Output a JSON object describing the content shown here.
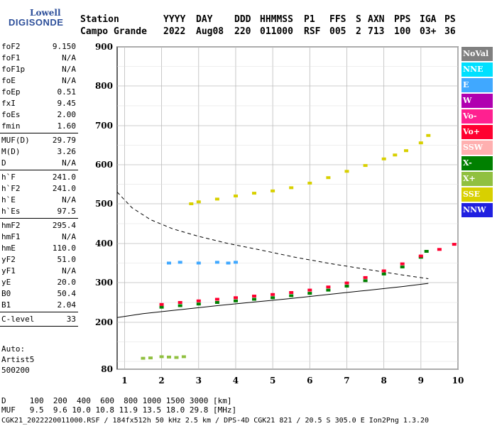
{
  "logo": {
    "line1": "Lowell",
    "line2": "DIGISONDE"
  },
  "header": {
    "labels": [
      "Station",
      "YYYY",
      "DAY",
      "DDD",
      "HHMMSS",
      "P1",
      "FFS",
      "S",
      "AXN",
      "PPS",
      "IGA",
      "PS"
    ],
    "values": [
      "Campo Grande",
      "2022",
      "Aug08",
      "220",
      "011000",
      "RSF",
      "005",
      "2",
      "713",
      "100",
      "03+",
      "36"
    ]
  },
  "params": {
    "group1": [
      [
        "foF2",
        "9.150"
      ],
      [
        "foF1",
        "N/A"
      ],
      [
        "foF1p",
        "N/A"
      ],
      [
        "foE",
        "N/A"
      ],
      [
        "foEp",
        "0.51"
      ],
      [
        "fxI",
        "9.45"
      ],
      [
        "foEs",
        "2.00"
      ],
      [
        "fmin",
        "1.60"
      ]
    ],
    "group2": [
      [
        "MUF(D)",
        "29.79"
      ],
      [
        "M(D)",
        "3.26"
      ],
      [
        "D",
        "N/A"
      ]
    ],
    "group3": [
      [
        "h`F",
        "241.0"
      ],
      [
        "h`F2",
        "241.0"
      ],
      [
        "h`E",
        "N/A"
      ],
      [
        "h`Es",
        "97.5"
      ]
    ],
    "group4": [
      [
        "hmF2",
        "295.4"
      ],
      [
        "hmF1",
        "N/A"
      ],
      [
        "hmE",
        "110.0"
      ],
      [
        "yF2",
        "51.0"
      ],
      [
        "yF1",
        "N/A"
      ],
      [
        "yE",
        "20.0"
      ],
      [
        "B0",
        "50.4"
      ],
      [
        "B1",
        "2.04"
      ]
    ],
    "group5": [
      [
        "C-level",
        "33"
      ]
    ]
  },
  "auto": [
    "Auto:",
    "Artist5",
    "500200"
  ],
  "legend": [
    {
      "label": "NoVal",
      "color": "#808080"
    },
    {
      "label": "NNE",
      "color": "#00e0ff"
    },
    {
      "label": "E",
      "color": "#40a8ff"
    },
    {
      "label": "W",
      "color": "#b000b0"
    },
    {
      "label": "Vo-",
      "color": "#ff2090"
    },
    {
      "label": "Vo+",
      "color": "#ff0030"
    },
    {
      "label": "SSW",
      "color": "#ffb0b0"
    },
    {
      "label": "X-",
      "color": "#008000"
    },
    {
      "label": "X+",
      "color": "#90c040"
    },
    {
      "label": "SSE",
      "color": "#d8d000"
    },
    {
      "label": "NNW",
      "color": "#2020e0"
    }
  ],
  "footer": {
    "line1": "D     100  200  400  600  800 1000 1500 3000 [km]",
    "line2": "MUF   9.5  9.6 10.0 10.8 11.9 13.5 18.0 29.8 [MHz]",
    "line3": "CGK21_2022220011000.RSF / 184fx512h 50 kHz 2.5 km / DPS-4D CGK21 821 / 20.5 S 305.0 E Ion2Png 1.3.20"
  },
  "chart_data": {
    "type": "scatter",
    "title": "",
    "xlabel": "",
    "ylabel": "",
    "xlim": [
      0.8,
      10
    ],
    "ylim": [
      80,
      900
    ],
    "x_ticks": [
      1,
      2,
      3,
      4,
      5,
      6,
      7,
      8,
      9,
      10
    ],
    "y_ticks": [
      80,
      200,
      300,
      400,
      500,
      600,
      700,
      800,
      900
    ],
    "grid": true,
    "series": [
      {
        "name": "X-",
        "x": [
          2.0,
          2.5,
          3.0,
          3.5,
          4.0,
          4.5,
          5.0,
          5.5,
          6.0,
          6.5,
          7.0,
          7.5,
          8.0,
          8.5,
          9.0,
          9.15
        ],
        "y": [
          238,
          242,
          246,
          250,
          254,
          258,
          262,
          267,
          273,
          281,
          291,
          305,
          322,
          340,
          365,
          380
        ]
      },
      {
        "name": "Vo+",
        "x": [
          2.0,
          2.5,
          3.0,
          3.5,
          4.0,
          4.5,
          5.0,
          5.5,
          6.0,
          6.5,
          7.0,
          7.5,
          8.0,
          8.5,
          9.0,
          9.5,
          9.9
        ],
        "y": [
          245,
          250,
          254,
          258,
          262,
          266,
          270,
          275,
          281,
          289,
          299,
          313,
          330,
          348,
          368,
          385,
          398
        ]
      },
      {
        "name": "E",
        "x": [
          2.2,
          2.5,
          3.0,
          3.5,
          3.8,
          4.0
        ],
        "y": [
          350,
          352,
          350,
          352,
          350,
          352
        ]
      },
      {
        "name": "SSE",
        "x": [
          2.8,
          3.0,
          3.5,
          4.0,
          4.5,
          5.0,
          5.5,
          6.0,
          6.5,
          7.0,
          7.5,
          8.0,
          8.3,
          8.6,
          9.0,
          9.2
        ],
        "y": [
          500,
          505,
          512,
          520,
          527,
          533,
          541,
          553,
          567,
          583,
          598,
          615,
          625,
          636,
          656,
          675
        ]
      },
      {
        "name": "X+",
        "x": [
          1.5,
          1.7,
          2.0,
          2.2,
          2.4,
          2.6
        ],
        "y": [
          108,
          109,
          112,
          111,
          110,
          112
        ]
      }
    ],
    "curves": [
      {
        "x": [
          0.8,
          1.5,
          2.5,
          3.5,
          4.5,
          5.5,
          6.5,
          7.5,
          8.5,
          9.2
        ],
        "y": [
          212,
          222,
          232,
          242,
          251,
          260,
          270,
          280,
          290,
          298
        ]
      },
      {
        "x": [
          0.8,
          1.2,
          1.7,
          2.3,
          3.0,
          3.8,
          4.7,
          5.6,
          6.6,
          7.6,
          8.6,
          9.2
        ],
        "y": [
          530,
          490,
          460,
          437,
          418,
          400,
          383,
          365,
          348,
          333,
          318,
          310
        ]
      }
    ]
  }
}
